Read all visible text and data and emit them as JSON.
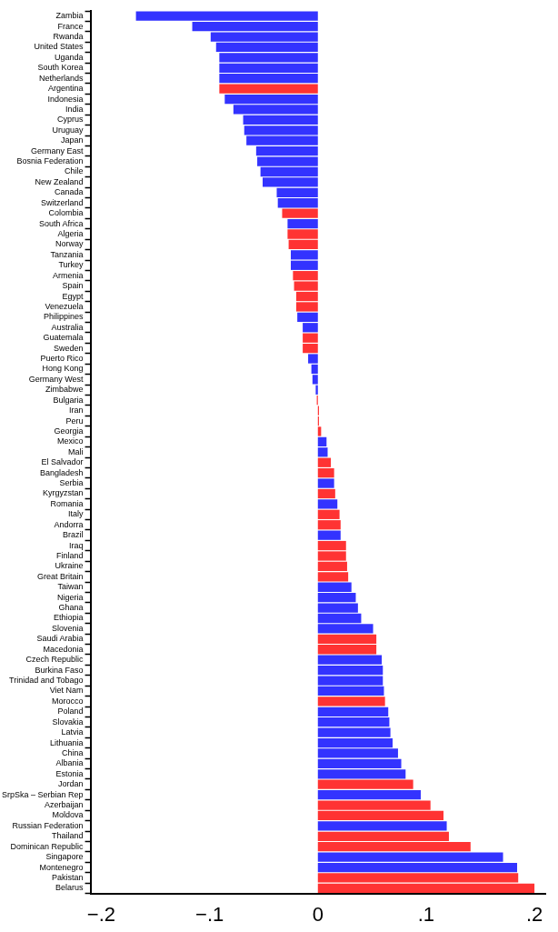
{
  "chart_data": {
    "type": "bar",
    "orientation": "horizontal",
    "categories": [
      "Zambia",
      "France",
      "Rwanda",
      "United States",
      "Uganda",
      "South Korea",
      "Netherlands",
      "Argentina",
      "Indonesia",
      "India",
      "Cyprus",
      "Uruguay",
      "Japan",
      "Germany East",
      "Bosnia Federation",
      "Chile",
      "New Zealand",
      "Canada",
      "Switzerland",
      "Colombia",
      "South Africa",
      "Algeria",
      "Norway",
      "Tanzania",
      "Turkey",
      "Armenia",
      "Spain",
      "Egypt",
      "Venezuela",
      "Philippines",
      "Australia",
      "Guatemala",
      "Sweden",
      "Puerto Rico",
      "Hong Kong",
      "Germany West",
      "Zimbabwe",
      "Bulgaria",
      "Iran",
      "Peru",
      "Georgia",
      "Mexico",
      "Mali",
      "El Salvador",
      "Bangladesh",
      "Serbia",
      "Kyrgyzstan",
      "Romania",
      "Italy",
      "Andorra",
      "Brazil",
      "Iraq",
      "Finland",
      "Ukraine",
      "Great Britain",
      "Taiwan",
      "Nigeria",
      "Ghana",
      "Ethiopia",
      "Slovenia",
      "Saudi Arabia",
      "Macedonia",
      "Czech Republic",
      "Burkina Faso",
      "Trinidad and Tobago",
      "Viet Nam",
      "Morocco",
      "Poland",
      "Slovakia",
      "Latvia",
      "Lithuania",
      "China",
      "Albania",
      "Estonia",
      "Jordan",
      "SrpSka – Serbian Rep",
      "Azerbaijan",
      "Moldova",
      "Russian Federation",
      "Thailand",
      "Dominican Republic",
      "Singapore",
      "Montenegro",
      "Pakistan",
      "Belarus"
    ],
    "values": [
      -0.168,
      -0.116,
      -0.099,
      -0.094,
      -0.091,
      -0.091,
      -0.091,
      -0.091,
      -0.086,
      -0.078,
      -0.069,
      -0.068,
      -0.066,
      -0.057,
      -0.056,
      -0.053,
      -0.051,
      -0.038,
      -0.037,
      -0.033,
      -0.028,
      -0.028,
      -0.027,
      -0.025,
      -0.025,
      -0.023,
      -0.022,
      -0.02,
      -0.02,
      -0.019,
      -0.014,
      -0.014,
      -0.014,
      -0.009,
      -0.006,
      -0.005,
      -0.002,
      -0.001,
      0.001,
      0.001,
      0.003,
      0.008,
      0.009,
      0.012,
      0.015,
      0.015,
      0.016,
      0.018,
      0.02,
      0.021,
      0.021,
      0.026,
      0.026,
      0.027,
      0.028,
      0.031,
      0.035,
      0.037,
      0.04,
      0.051,
      0.054,
      0.054,
      0.059,
      0.06,
      0.06,
      0.061,
      0.062,
      0.065,
      0.066,
      0.067,
      0.069,
      0.074,
      0.077,
      0.081,
      0.088,
      0.095,
      0.104,
      0.116,
      0.119,
      0.121,
      0.141,
      0.171,
      0.184,
      0.185,
      0.2
    ],
    "colors": [
      "#3333ff",
      "#3333ff",
      "#3333ff",
      "#3333ff",
      "#3333ff",
      "#3333ff",
      "#3333ff",
      "#ff3333",
      "#3333ff",
      "#3333ff",
      "#3333ff",
      "#3333ff",
      "#3333ff",
      "#3333ff",
      "#3333ff",
      "#3333ff",
      "#3333ff",
      "#3333ff",
      "#3333ff",
      "#ff3333",
      "#3333ff",
      "#ff3333",
      "#ff3333",
      "#3333ff",
      "#3333ff",
      "#ff3333",
      "#ff3333",
      "#ff3333",
      "#ff3333",
      "#3333ff",
      "#3333ff",
      "#ff3333",
      "#ff3333",
      "#3333ff",
      "#3333ff",
      "#3333ff",
      "#3333ff",
      "#ff3333",
      "#ff3333",
      "#ff3333",
      "#ff3333",
      "#3333ff",
      "#3333ff",
      "#ff3333",
      "#ff3333",
      "#3333ff",
      "#ff3333",
      "#3333ff",
      "#ff3333",
      "#ff3333",
      "#3333ff",
      "#ff3333",
      "#ff3333",
      "#ff3333",
      "#ff3333",
      "#3333ff",
      "#3333ff",
      "#3333ff",
      "#3333ff",
      "#3333ff",
      "#ff3333",
      "#ff3333",
      "#3333ff",
      "#3333ff",
      "#3333ff",
      "#3333ff",
      "#ff3333",
      "#3333ff",
      "#3333ff",
      "#3333ff",
      "#3333ff",
      "#3333ff",
      "#3333ff",
      "#3333ff",
      "#ff3333",
      "#3333ff",
      "#ff3333",
      "#ff3333",
      "#3333ff",
      "#ff3333",
      "#ff3333",
      "#3333ff",
      "#3333ff",
      "#ff3333",
      "#ff3333"
    ],
    "xlim": [
      -0.21,
      0.21
    ],
    "xticks": [
      {
        "value": -0.2,
        "label": "−.2"
      },
      {
        "value": -0.1,
        "label": "−.1"
      },
      0,
      {
        "value": 0.1,
        "label": ".1"
      },
      {
        "value": 0.2,
        "label": ".2"
      }
    ],
    "grid": false,
    "legend": false
  }
}
